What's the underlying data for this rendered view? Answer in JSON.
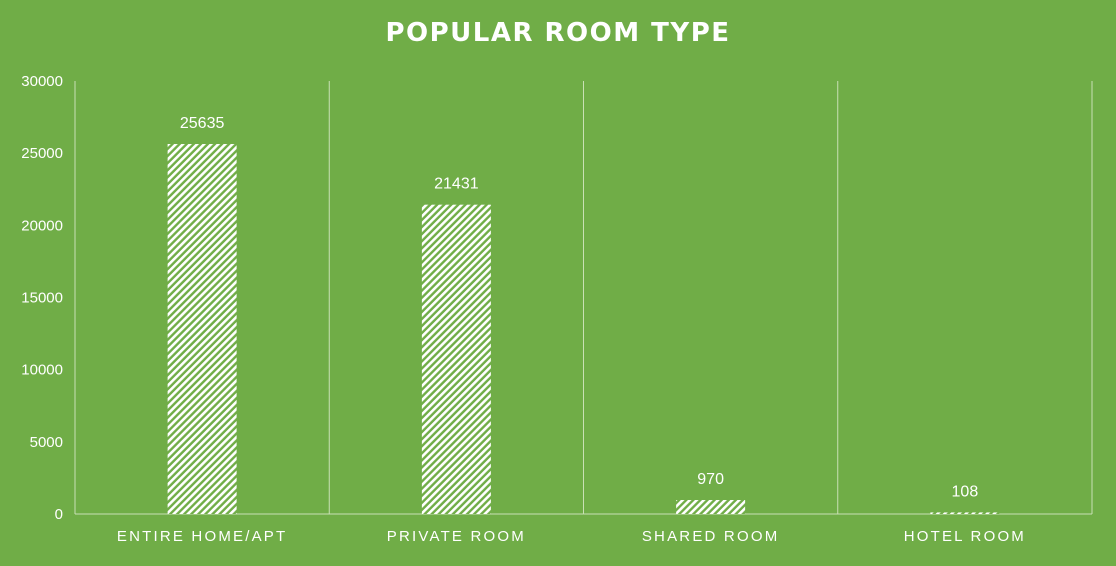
{
  "chart_data": {
    "type": "bar",
    "title": "POPULAR ROOM TYPE",
    "categories": [
      "ENTIRE HOME/APT",
      "PRIVATE ROOM",
      "SHARED ROOM",
      "HOTEL ROOM"
    ],
    "series": [
      {
        "values": [
          25635,
          21431,
          970,
          108
        ]
      }
    ],
    "data_labels": [
      "25635",
      "21431",
      "970",
      "108"
    ],
    "ylim": [
      0,
      30000
    ],
    "yticks": [
      0,
      5000,
      10000,
      15000,
      20000,
      25000,
      30000
    ],
    "xlabel": "",
    "ylabel": "",
    "grid": "vertical-separators",
    "legend": "none",
    "colors": {
      "background": "#70ad47",
      "bar_fill_pattern": "white-diagonal-hatch",
      "hatch_stripe": "#ffffff",
      "hatch_base": "#70ad47",
      "axis_line": "#c9e0b5",
      "text": "#ffffff"
    }
  }
}
